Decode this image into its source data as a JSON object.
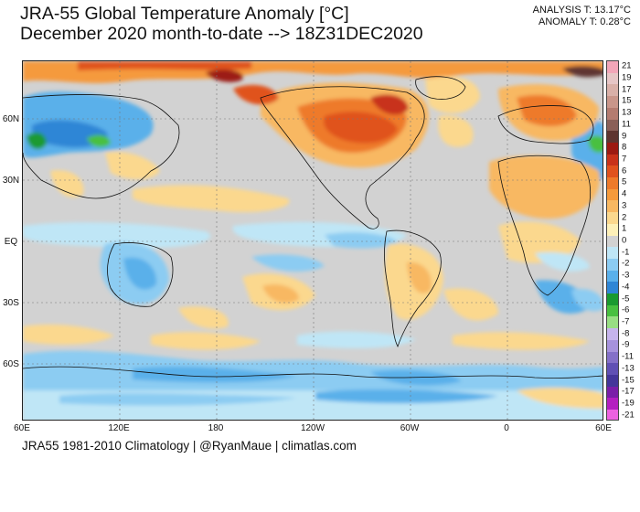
{
  "title": {
    "line1": "JRA-55 Global Temperature Anomaly [°C]",
    "line2": "December 2020 month-to-date --> 18Z31DEC2020"
  },
  "stats": {
    "analysis": "ANALYSIS T: 13.17°C",
    "anomaly": "ANOMALY T: 0.28°C"
  },
  "map": {
    "lat_labels": [
      "60N",
      "30N",
      "EQ",
      "30S",
      "60S"
    ],
    "lon_labels": [
      "60E",
      "120E",
      "180",
      "120W",
      "60W",
      "0",
      "60E"
    ]
  },
  "colorbar": {
    "labels": [
      "21",
      "19",
      "17",
      "15",
      "13",
      "11",
      "9",
      "8",
      "7",
      "6",
      "5",
      "4",
      "3",
      "2",
      "1",
      "0",
      "-1",
      "-2",
      "-3",
      "-4",
      "-5",
      "-6",
      "-7",
      "-8",
      "-9",
      "-11",
      "-13",
      "-15",
      "-17",
      "-19",
      "-21"
    ],
    "colors": [
      "#f2a6b8",
      "#e6c6c6",
      "#d9b0a8",
      "#c9968a",
      "#b47c70",
      "#8a6058",
      "#5e3530",
      "#9c1a12",
      "#c8321a",
      "#e0521e",
      "#ee7a2a",
      "#f59a3c",
      "#f8b862",
      "#fbd88e",
      "#fdf0b8",
      "#d2d2d2",
      "#bfe6f6",
      "#8cccf2",
      "#5ab0ea",
      "#2f86d6",
      "#1a9a30",
      "#48c040",
      "#98de84",
      "#c6b4ec",
      "#a692dc",
      "#8470c8",
      "#6050b4",
      "#44369a",
      "#7a1ea8",
      "#b41ec0",
      "#ec62e0"
    ]
  },
  "footer": {
    "text": "JRA55 1981-2010 Climatology | @RyanMaue | climatlas.com"
  }
}
